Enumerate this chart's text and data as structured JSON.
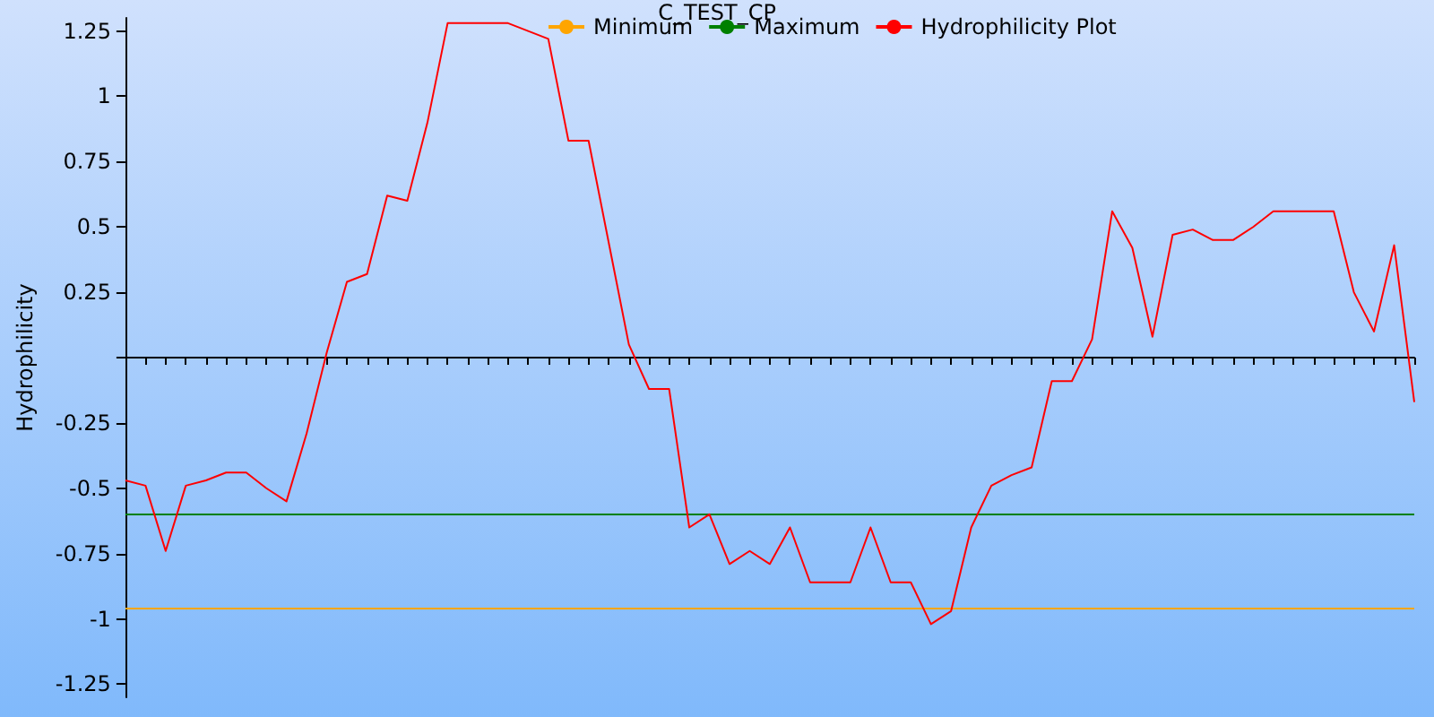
{
  "chart_data": {
    "type": "line",
    "title": "C_TEST_CP",
    "ylabel": "Hydrophilicity",
    "categories": [
      null,
      null,
      null,
      null,
      null,
      null,
      null,
      null,
      null,
      null,
      null,
      null,
      null,
      null,
      null,
      null,
      null,
      null,
      null,
      null,
      null,
      null,
      null,
      null,
      null,
      null,
      null,
      null,
      null,
      null,
      null,
      null,
      null,
      null,
      null,
      null,
      null,
      null,
      null,
      null,
      null,
      null,
      null,
      null,
      null,
      null,
      null,
      null,
      null,
      null,
      null,
      null,
      null,
      null,
      null,
      null,
      null,
      null,
      null,
      null,
      null,
      null,
      null,
      null,
      null
    ],
    "series": [
      {
        "name": "Minimum",
        "color": "#ffa500",
        "values": [
          -0.96,
          -0.96,
          -0.96,
          -0.96,
          -0.96,
          -0.96,
          -0.96,
          -0.96,
          -0.96,
          -0.96,
          -0.96,
          -0.96,
          -0.96,
          -0.96,
          -0.96,
          -0.96,
          -0.96,
          -0.96,
          -0.96,
          -0.96,
          -0.96,
          -0.96,
          -0.96,
          -0.96,
          -0.96,
          -0.96,
          -0.96,
          -0.96,
          -0.96,
          -0.96,
          -0.96,
          -0.96,
          -0.96,
          -0.96,
          -0.96,
          -0.96,
          -0.96,
          -0.96,
          -0.96,
          -0.96,
          -0.96,
          -0.96,
          -0.96,
          -0.96,
          -0.96,
          -0.96,
          -0.96,
          -0.96,
          -0.96,
          -0.96,
          -0.96,
          -0.96,
          -0.96,
          -0.96,
          -0.96,
          -0.96,
          -0.96,
          -0.96,
          -0.96,
          -0.96,
          -0.96,
          -0.96,
          -0.96,
          -0.96,
          -0.96
        ]
      },
      {
        "name": "Maximum",
        "color": "#008000",
        "values": [
          -0.6,
          -0.6,
          -0.6,
          -0.6,
          -0.6,
          -0.6,
          -0.6,
          -0.6,
          -0.6,
          -0.6,
          -0.6,
          -0.6,
          -0.6,
          -0.6,
          -0.6,
          -0.6,
          -0.6,
          -0.6,
          -0.6,
          -0.6,
          -0.6,
          -0.6,
          -0.6,
          -0.6,
          -0.6,
          -0.6,
          -0.6,
          -0.6,
          -0.6,
          -0.6,
          -0.6,
          -0.6,
          -0.6,
          -0.6,
          -0.6,
          -0.6,
          -0.6,
          -0.6,
          -0.6,
          -0.6,
          -0.6,
          -0.6,
          -0.6,
          -0.6,
          -0.6,
          -0.6,
          -0.6,
          -0.6,
          -0.6,
          -0.6,
          -0.6,
          -0.6,
          -0.6,
          -0.6,
          -0.6,
          -0.6,
          -0.6,
          -0.6,
          -0.6,
          -0.6,
          -0.6,
          -0.6,
          -0.6,
          -0.6,
          -0.6
        ]
      },
      {
        "name": "Hydrophilicity Plot",
        "color": "#ff0000",
        "values": [
          -0.47,
          -0.49,
          -0.74,
          -0.49,
          -0.47,
          -0.44,
          -0.44,
          -0.5,
          -0.55,
          -0.29,
          0.02,
          0.29,
          0.32,
          0.62,
          0.6,
          0.9,
          1.28,
          1.28,
          1.28,
          1.28,
          1.25,
          1.22,
          0.83,
          0.83,
          0.44,
          0.05,
          -0.12,
          -0.12,
          -0.65,
          -0.6,
          -0.79,
          -0.74,
          -0.79,
          -0.65,
          -0.86,
          -0.86,
          -0.86,
          -0.65,
          -0.86,
          -0.86,
          -1.02,
          -0.97,
          -0.65,
          -0.49,
          -0.45,
          -0.42,
          -0.09,
          -0.09,
          0.07,
          0.56,
          0.42,
          0.08,
          0.47,
          0.49,
          0.45,
          0.45,
          0.5,
          0.56,
          0.56,
          0.56,
          0.56,
          0.25,
          0.1,
          0.43,
          -0.17
        ]
      }
    ],
    "ylim": [
      -1.3,
      1.3
    ],
    "yticks": [
      -1.25,
      -1,
      -0.75,
      -0.5,
      -0.25,
      {
        "value": 0,
        "label": null
      },
      0.25,
      0.5,
      0.75,
      1,
      1.25
    ],
    "legend": "top",
    "marker": "none",
    "line_style": "solid"
  }
}
